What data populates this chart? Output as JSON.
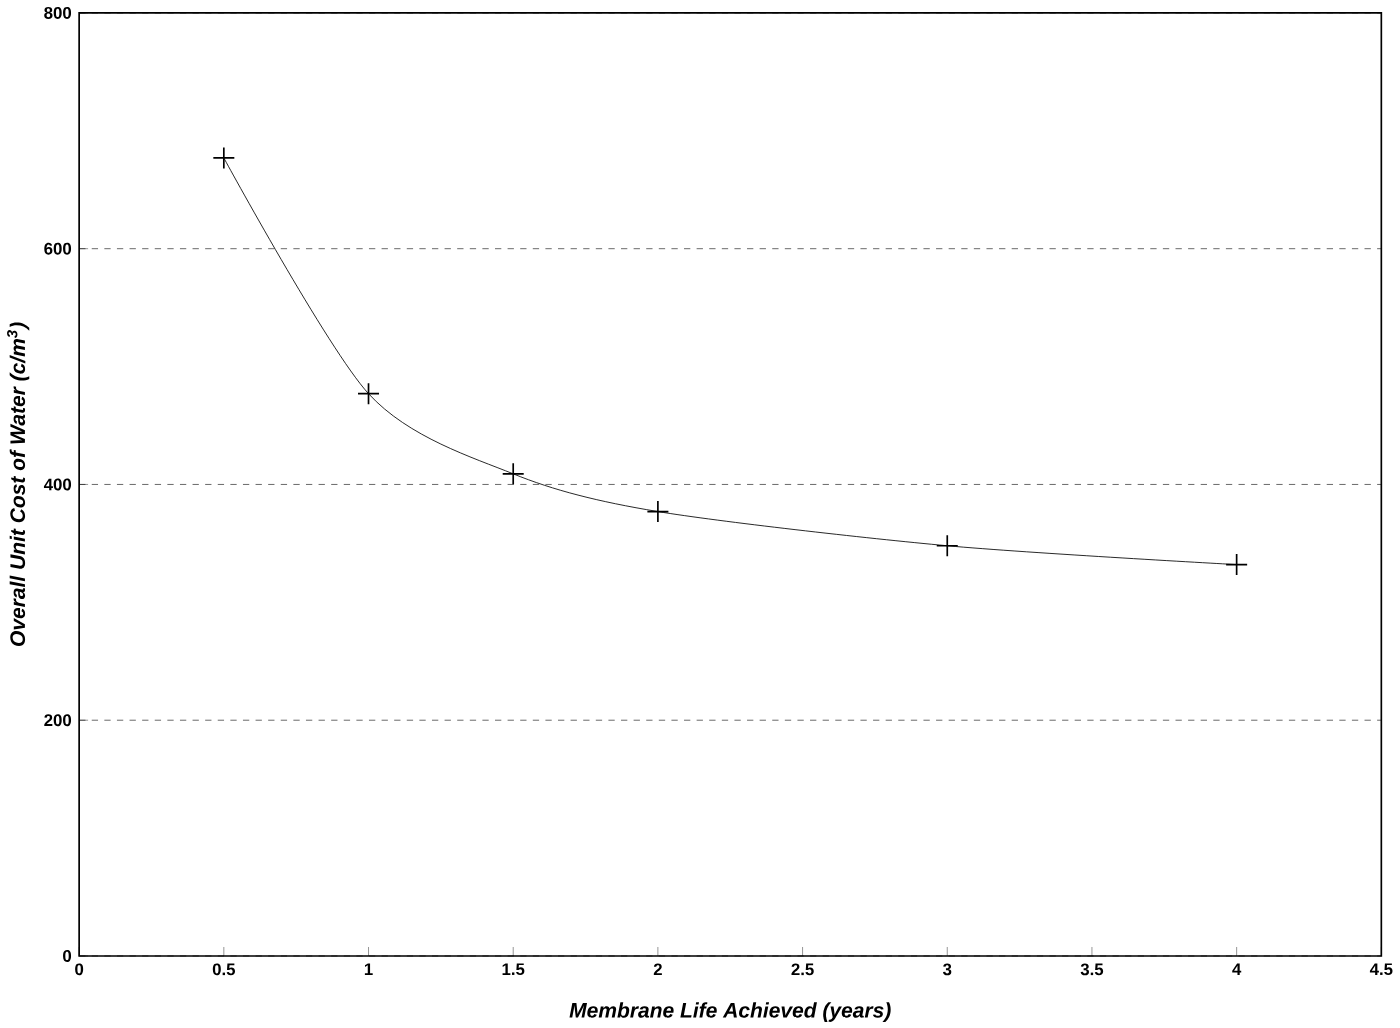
{
  "chart_data": {
    "type": "line",
    "xlabel": "Membrane Life Achieved (years)",
    "ylabel": "Overall Unit Cost of Water (c/m$^{3}$)",
    "x": [
      0.5,
      1,
      1.5,
      2,
      3,
      4
    ],
    "series": [
      {
        "color": "#000000",
        "values": [
          677,
          477,
          409,
          377,
          348,
          332
        ]
      }
    ],
    "xlim": [
      0,
      4.5
    ],
    "xticks": [
      0,
      0.5,
      1,
      1.5,
      2,
      2.5,
      3,
      3.5,
      4,
      4.5
    ],
    "ylim": [
      0,
      800
    ],
    "yticks": [
      0,
      200,
      400,
      600,
      800
    ],
    "grid": "y",
    "marker": "cross",
    "line_style": "solid"
  }
}
